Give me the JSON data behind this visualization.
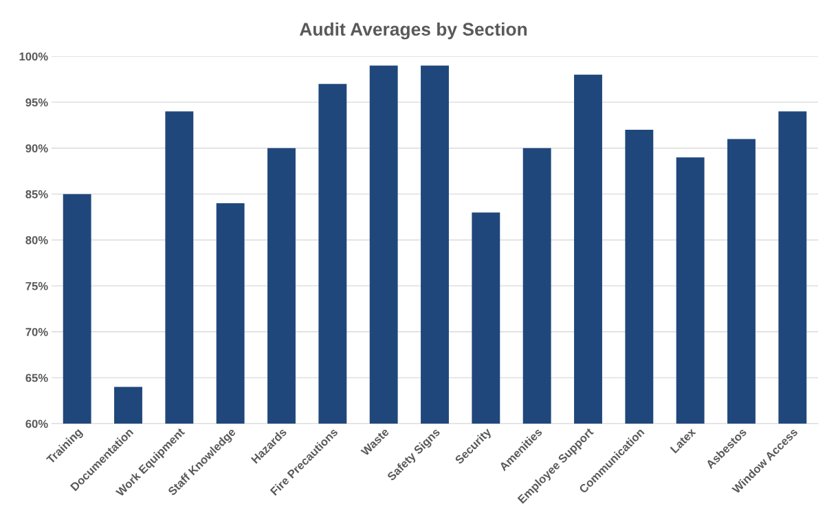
{
  "chart_data": {
    "type": "bar",
    "title": "Audit Averages by Section",
    "categories": [
      "Training",
      "Documentation",
      "Work Equipment",
      "Staff Knowledge",
      "Hazards",
      "Fire Precautions",
      "Waste",
      "Safety Signs",
      "Security",
      "Amenities",
      "Employee Support",
      "Communication",
      "Latex",
      "Asbestos",
      "Window Access"
    ],
    "values": [
      85,
      64,
      94,
      84,
      90,
      97,
      99,
      99,
      83,
      90,
      98,
      92,
      89,
      91,
      94
    ],
    "color": "#1f477b",
    "ylim": [
      60,
      100
    ],
    "yticks": [
      {
        "value": 60,
        "label": "60%"
      },
      {
        "value": 65,
        "label": "65%"
      },
      {
        "value": 70,
        "label": "70%"
      },
      {
        "value": 75,
        "label": "75%"
      },
      {
        "value": 80,
        "label": "80%"
      },
      {
        "value": 85,
        "label": "85%"
      },
      {
        "value": 90,
        "label": "90%"
      },
      {
        "value": 95,
        "label": "95%"
      },
      {
        "value": 100,
        "label": "100%"
      }
    ],
    "grid": "y",
    "legend": false
  }
}
